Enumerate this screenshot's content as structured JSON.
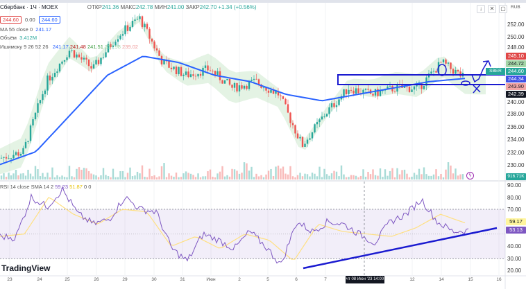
{
  "header": {
    "symbol": "Сбербанк · 1Ч · MOEX",
    "open_label": "ОТКР",
    "open": "241.36",
    "high_label": "МАКС",
    "high": "242.78",
    "low_label": "МИН",
    "low": "241.00",
    "close_label": "ЗАКР",
    "close": "242.70",
    "change": "+1.34 (+0.56%)",
    "sell_price": "244.60",
    "spread": "0.00",
    "buy_price": "244.60"
  },
  "indicators": {
    "ma": "MA 55 close 0",
    "ma_value": "241.17",
    "volume": "Объём",
    "volume_value": "3.412M",
    "ichimoku": "Ишимоку 9 26 52 26",
    "ichi_values": [
      "241.17",
      "241.48",
      "241.51",
      "237.98",
      "239.02"
    ],
    "rsi": "RSI 14 close SMA 14 2",
    "rsi_value": "59.23",
    "rsi_sma": "51.87",
    "rsi_extra": "0 0"
  },
  "toolbar": {
    "currency": "RUB"
  },
  "price_axis": [
    "252.00",
    "250.00",
    "248.00",
    "240.00",
    "238.00",
    "236.00",
    "234.00",
    "232.00",
    "230.00"
  ],
  "price_labels": [
    {
      "text": "245.10",
      "color": "#e04646"
    },
    {
      "text": "244.72",
      "color": "#a5d6a7"
    },
    {
      "text": "244.60",
      "color": "#26a69a"
    },
    {
      "text": "244.34",
      "color": "#3f51e5"
    },
    {
      "text": "243.90",
      "color": "#f3a6a6"
    },
    {
      "text": "242.39",
      "color": "#131722"
    }
  ],
  "symbol_tag": "SBER",
  "volume_label": "916.71K",
  "rsi_axis": [
    "90.00",
    "80.00",
    "70.00",
    "40.00",
    "30.00",
    "20.00"
  ],
  "rsi_labels": [
    {
      "text": "59.17",
      "color": "#fff59d"
    },
    {
      "text": "53.13",
      "color": "#7e57c2"
    }
  ],
  "time_axis": [
    "23",
    "24",
    "25",
    "26",
    "29",
    "30",
    "31",
    "Июн",
    "2",
    "5",
    "6",
    "7",
    "12",
    "14",
    "15",
    "16"
  ],
  "crosshair_time": "чт 08 Июн '23  14:00",
  "brand": "TradingView",
  "chart_data": {
    "type": "candlestick",
    "title": "Сбербанк · 1Ч · MOEX",
    "ylim": [
      229,
      253
    ],
    "close_path": [
      231,
      232,
      243,
      248,
      245,
      250,
      253,
      246,
      244,
      245,
      242,
      243,
      241,
      233,
      238,
      242,
      241,
      242,
      242,
      246,
      243.5
    ],
    "ma55_path": [
      230,
      232,
      238,
      244,
      247,
      246,
      244,
      243,
      241,
      240,
      241,
      242,
      243,
      243.5
    ],
    "rsi": {
      "ylim": [
        15,
        95
      ],
      "levels": [
        30,
        70
      ],
      "path": [
        48,
        47,
        80,
        72,
        86,
        66,
        58,
        62,
        80,
        70,
        68,
        38,
        28,
        50,
        45,
        38,
        52,
        40,
        25,
        60,
        52,
        60,
        58,
        50,
        43,
        60,
        66,
        78,
        60,
        52,
        53
      ],
      "sma_path": [
        48,
        50,
        80,
        66,
        58,
        70,
        68,
        40,
        48,
        38,
        50,
        45,
        28,
        58,
        52,
        50,
        48,
        55,
        66,
        59
      ]
    }
  }
}
